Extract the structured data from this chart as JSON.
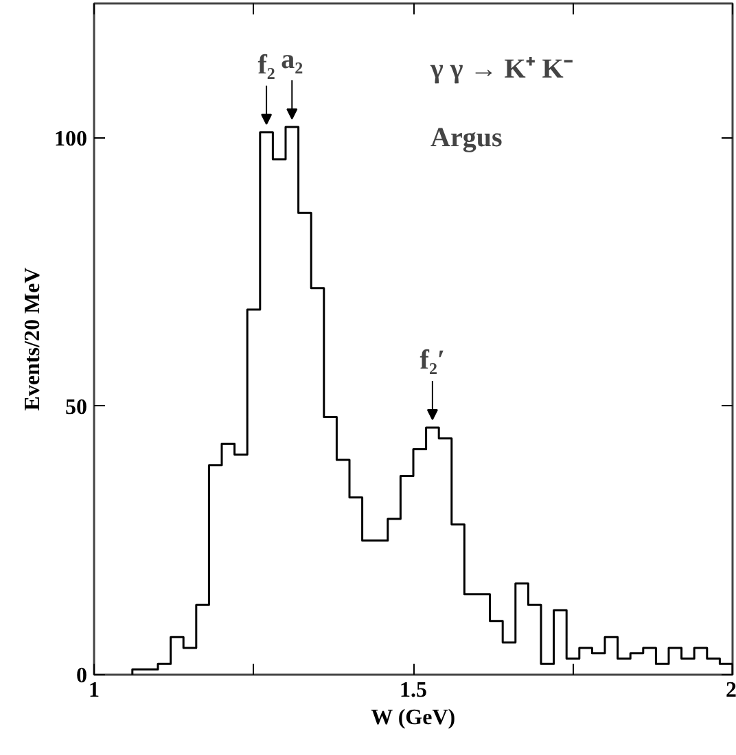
{
  "chart_data": {
    "type": "histogram",
    "bins": [
      1.06,
      1.08,
      1.1,
      1.12,
      1.14,
      1.16,
      1.18,
      1.2,
      1.22,
      1.24,
      1.26,
      1.28,
      1.3,
      1.32,
      1.34,
      1.36,
      1.38,
      1.4,
      1.42,
      1.44,
      1.46,
      1.48,
      1.5,
      1.52,
      1.54,
      1.56,
      1.58,
      1.6,
      1.62,
      1.64,
      1.66,
      1.68,
      1.7,
      1.72,
      1.74,
      1.76,
      1.78,
      1.8,
      1.82,
      1.84,
      1.86,
      1.88,
      1.9,
      1.92,
      1.94,
      1.96,
      1.98,
      2.0
    ],
    "values": [
      1,
      1,
      2,
      7,
      5,
      13,
      39,
      43,
      41,
      68,
      101,
      96,
      102,
      86,
      72,
      48,
      40,
      33,
      25,
      25,
      29,
      37,
      42,
      46,
      44,
      28,
      15,
      15,
      10,
      6,
      17,
      13,
      2,
      12,
      3,
      5,
      4,
      7,
      3,
      4,
      5,
      2,
      5,
      3,
      5,
      3,
      2
    ],
    "color": "#000000",
    "xlabel": "W (GeV)",
    "ylabel": "Events/20 MeV",
    "xlim": [
      1,
      2
    ],
    "ylim": [
      0,
      125
    ],
    "xticks": [
      1,
      {
        "value": 1.25,
        "label": null
      },
      1.5,
      {
        "value": 1.75,
        "label": null
      },
      2
    ],
    "yticks": [
      0,
      50,
      100
    ],
    "annotations": [
      {
        "text": "f₂",
        "x": 1.27,
        "y": 101
      },
      {
        "text": "a₂",
        "x": 1.31,
        "y": 102
      },
      {
        "text": "f₂′",
        "x": 1.53,
        "y": 46
      },
      "γ γ → K⁺ K⁻",
      "Argus"
    ],
    "grid": false
  }
}
